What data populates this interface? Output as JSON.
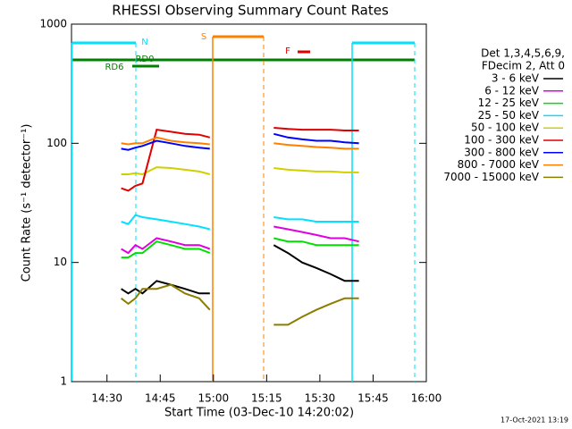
{
  "chart_data": {
    "type": "line",
    "title": "RHESSI Observing Summary Count Rates",
    "x_label": "Start Time (03-Dec-10 14:20:02)",
    "y_label": "Count Rate (s⁻¹ detector⁻¹)",
    "footer": "17-Oct-2021 13:19",
    "legend_header": [
      "Det 1,3,4,5,6,9,",
      "FDecim 2, Att 0"
    ],
    "annotations": [
      "N",
      "S",
      "F",
      "RD0",
      "RD6"
    ],
    "x": [
      874,
      876,
      878,
      880,
      884,
      888,
      892,
      896,
      899,
      908,
      917,
      921,
      925,
      929,
      933,
      937,
      941
    ],
    "xlim": [
      860,
      960
    ],
    "xticks": [
      {
        "value": 870,
        "label": "14:30"
      },
      {
        "value": 885,
        "label": "14:45"
      },
      {
        "value": 900,
        "label": "15:00"
      },
      {
        "value": 915,
        "label": "15:15"
      },
      {
        "value": 930,
        "label": "15:30"
      },
      {
        "value": 945,
        "label": "15:45"
      },
      {
        "value": 960,
        "label": "16:00"
      }
    ],
    "ylim": [
      1,
      1000
    ],
    "yticks": [
      1,
      10,
      100,
      1000
    ],
    "log_y": true,
    "series": [
      {
        "name": "3 - 6 keV",
        "color": "#000000",
        "values": [
          6,
          5.5,
          6,
          5.5,
          7,
          6.5,
          6,
          5.5,
          5.5,
          null,
          14,
          12,
          10,
          9,
          8,
          7,
          7
        ]
      },
      {
        "name": "6 - 12 keV",
        "color": "#e000e0",
        "values": [
          13,
          12,
          14,
          13,
          16,
          15,
          14,
          14,
          13,
          null,
          20,
          19,
          18,
          17,
          16,
          16,
          15
        ]
      },
      {
        "name": "12 - 25 keV",
        "color": "#00e000",
        "values": [
          11,
          11,
          12,
          12,
          15,
          14,
          13,
          13,
          12,
          null,
          16,
          15,
          15,
          14,
          14,
          14,
          14
        ]
      },
      {
        "name": "25 - 50 keV",
        "color": "#00e0ff",
        "values": [
          22,
          21,
          25,
          24,
          23,
          22,
          21,
          20,
          19,
          null,
          24,
          23,
          23,
          22,
          22,
          22,
          22
        ]
      },
      {
        "name": "50 - 100 keV",
        "color": "#d0d000",
        "values": [
          55,
          55,
          56,
          55,
          63,
          62,
          60,
          58,
          55,
          null,
          62,
          60,
          59,
          58,
          58,
          57,
          57
        ]
      },
      {
        "name": "100 - 300 keV",
        "color": "#e00000",
        "values": [
          42,
          40,
          44,
          46,
          130,
          125,
          120,
          118,
          112,
          null,
          135,
          132,
          130,
          130,
          130,
          128,
          128
        ]
      },
      {
        "name": "300 - 800 keV",
        "color": "#0000ff",
        "values": [
          90,
          88,
          92,
          95,
          105,
          100,
          95,
          92,
          90,
          null,
          120,
          112,
          108,
          105,
          105,
          102,
          100
        ]
      },
      {
        "name": "800 - 7000 keV",
        "color": "#ff8000",
        "values": [
          100,
          98,
          100,
          100,
          112,
          105,
          102,
          100,
          98,
          null,
          100,
          97,
          95,
          93,
          92,
          90,
          90
        ]
      },
      {
        "name": "7000 - 15000 keV",
        "color": "#8b7d00",
        "values": [
          5,
          4.5,
          5,
          6,
          6,
          6.5,
          5.5,
          5,
          4,
          null,
          3,
          3,
          3.5,
          4,
          4.5,
          5,
          5
        ]
      }
    ]
  }
}
